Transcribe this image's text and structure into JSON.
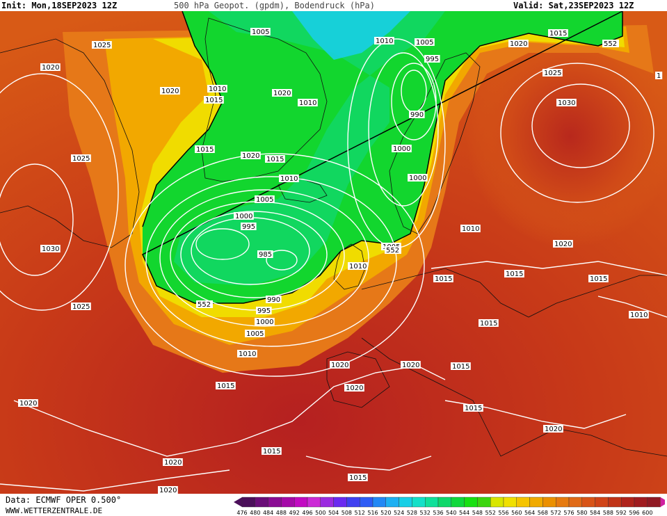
{
  "header": {
    "init": "Init: Mon,18SEP2023 12Z",
    "title": "500 hPa Geopot. (gpdm), Bodendruck (hPa)",
    "valid": "Valid: Sat,23SEP2023 12Z"
  },
  "footer": {
    "data_source": "Data: ECMWF OPER 0.500°",
    "website": "WWW.WETTERZENTRALE.DE"
  },
  "legend": {
    "values": [
      "476",
      "480",
      "484",
      "488",
      "492",
      "496",
      "500",
      "504",
      "508",
      "512",
      "516",
      "520",
      "524",
      "528",
      "532",
      "536",
      "540",
      "544",
      "548",
      "552",
      "556",
      "560",
      "564",
      "568",
      "572",
      "576",
      "580",
      "584",
      "588",
      "592",
      "596",
      "600"
    ],
    "colors": [
      "#4b0f5a",
      "#6a0d78",
      "#8a0c93",
      "#a50aa8",
      "#c20ac2",
      "#cc2bd6",
      "#9b2be0",
      "#6a2af0",
      "#4040f0",
      "#2e5cf5",
      "#2288f5",
      "#1eb0f2",
      "#18cfe6",
      "#14e0c8",
      "#10e09a",
      "#0fd86a",
      "#10d83c",
      "#18e012",
      "#3cd510",
      "#d8e600",
      "#f0e000",
      "#f5c400",
      "#f0aa00",
      "#eb9000",
      "#e67a10",
      "#e06a18",
      "#d85418",
      "#d04418",
      "#c03418",
      "#b0241c",
      "#a01c20",
      "#901a24"
    ]
  },
  "pressure_labels": [
    {
      "t": "1005"
    },
    {
      "t": "1010"
    },
    {
      "t": "1005"
    },
    {
      "t": "995"
    },
    {
      "t": "1020"
    },
    {
      "t": "1015"
    },
    {
      "t": "1025"
    },
    {
      "t": "1020"
    },
    {
      "t": "1020"
    },
    {
      "t": "1010"
    },
    {
      "t": "1015"
    },
    {
      "t": "1020"
    },
    {
      "t": "1010"
    },
    {
      "t": "990"
    },
    {
      "t": "1025"
    },
    {
      "t": "1030"
    },
    {
      "t": "1015"
    },
    {
      "t": "1020"
    },
    {
      "t": "1015"
    },
    {
      "t": "1000"
    },
    {
      "t": "1025"
    },
    {
      "t": "1010"
    },
    {
      "t": "1000"
    },
    {
      "t": "1005"
    },
    {
      "t": "1000"
    },
    {
      "t": "995"
    },
    {
      "t": "1010"
    },
    {
      "t": "1030"
    },
    {
      "t": "985"
    },
    {
      "t": "1005"
    },
    {
      "t": "1020"
    },
    {
      "t": "1010"
    },
    {
      "t": "1015"
    },
    {
      "t": "1015"
    },
    {
      "t": "1015"
    },
    {
      "t": "990"
    },
    {
      "t": "995"
    },
    {
      "t": "1000"
    },
    {
      "t": "1025"
    },
    {
      "t": "1010"
    },
    {
      "t": "1005"
    },
    {
      "t": "1015"
    },
    {
      "t": "1010"
    },
    {
      "t": "1020"
    },
    {
      "t": "1020"
    },
    {
      "t": "1015"
    },
    {
      "t": "1020"
    },
    {
      "t": "1015"
    },
    {
      "t": "1015"
    },
    {
      "t": "1020"
    },
    {
      "t": "1020"
    },
    {
      "t": "1015"
    },
    {
      "t": "1020"
    },
    {
      "t": "1015"
    },
    {
      "t": "1020"
    },
    {
      "t": "1"
    }
  ],
  "contour_label": "552"
}
